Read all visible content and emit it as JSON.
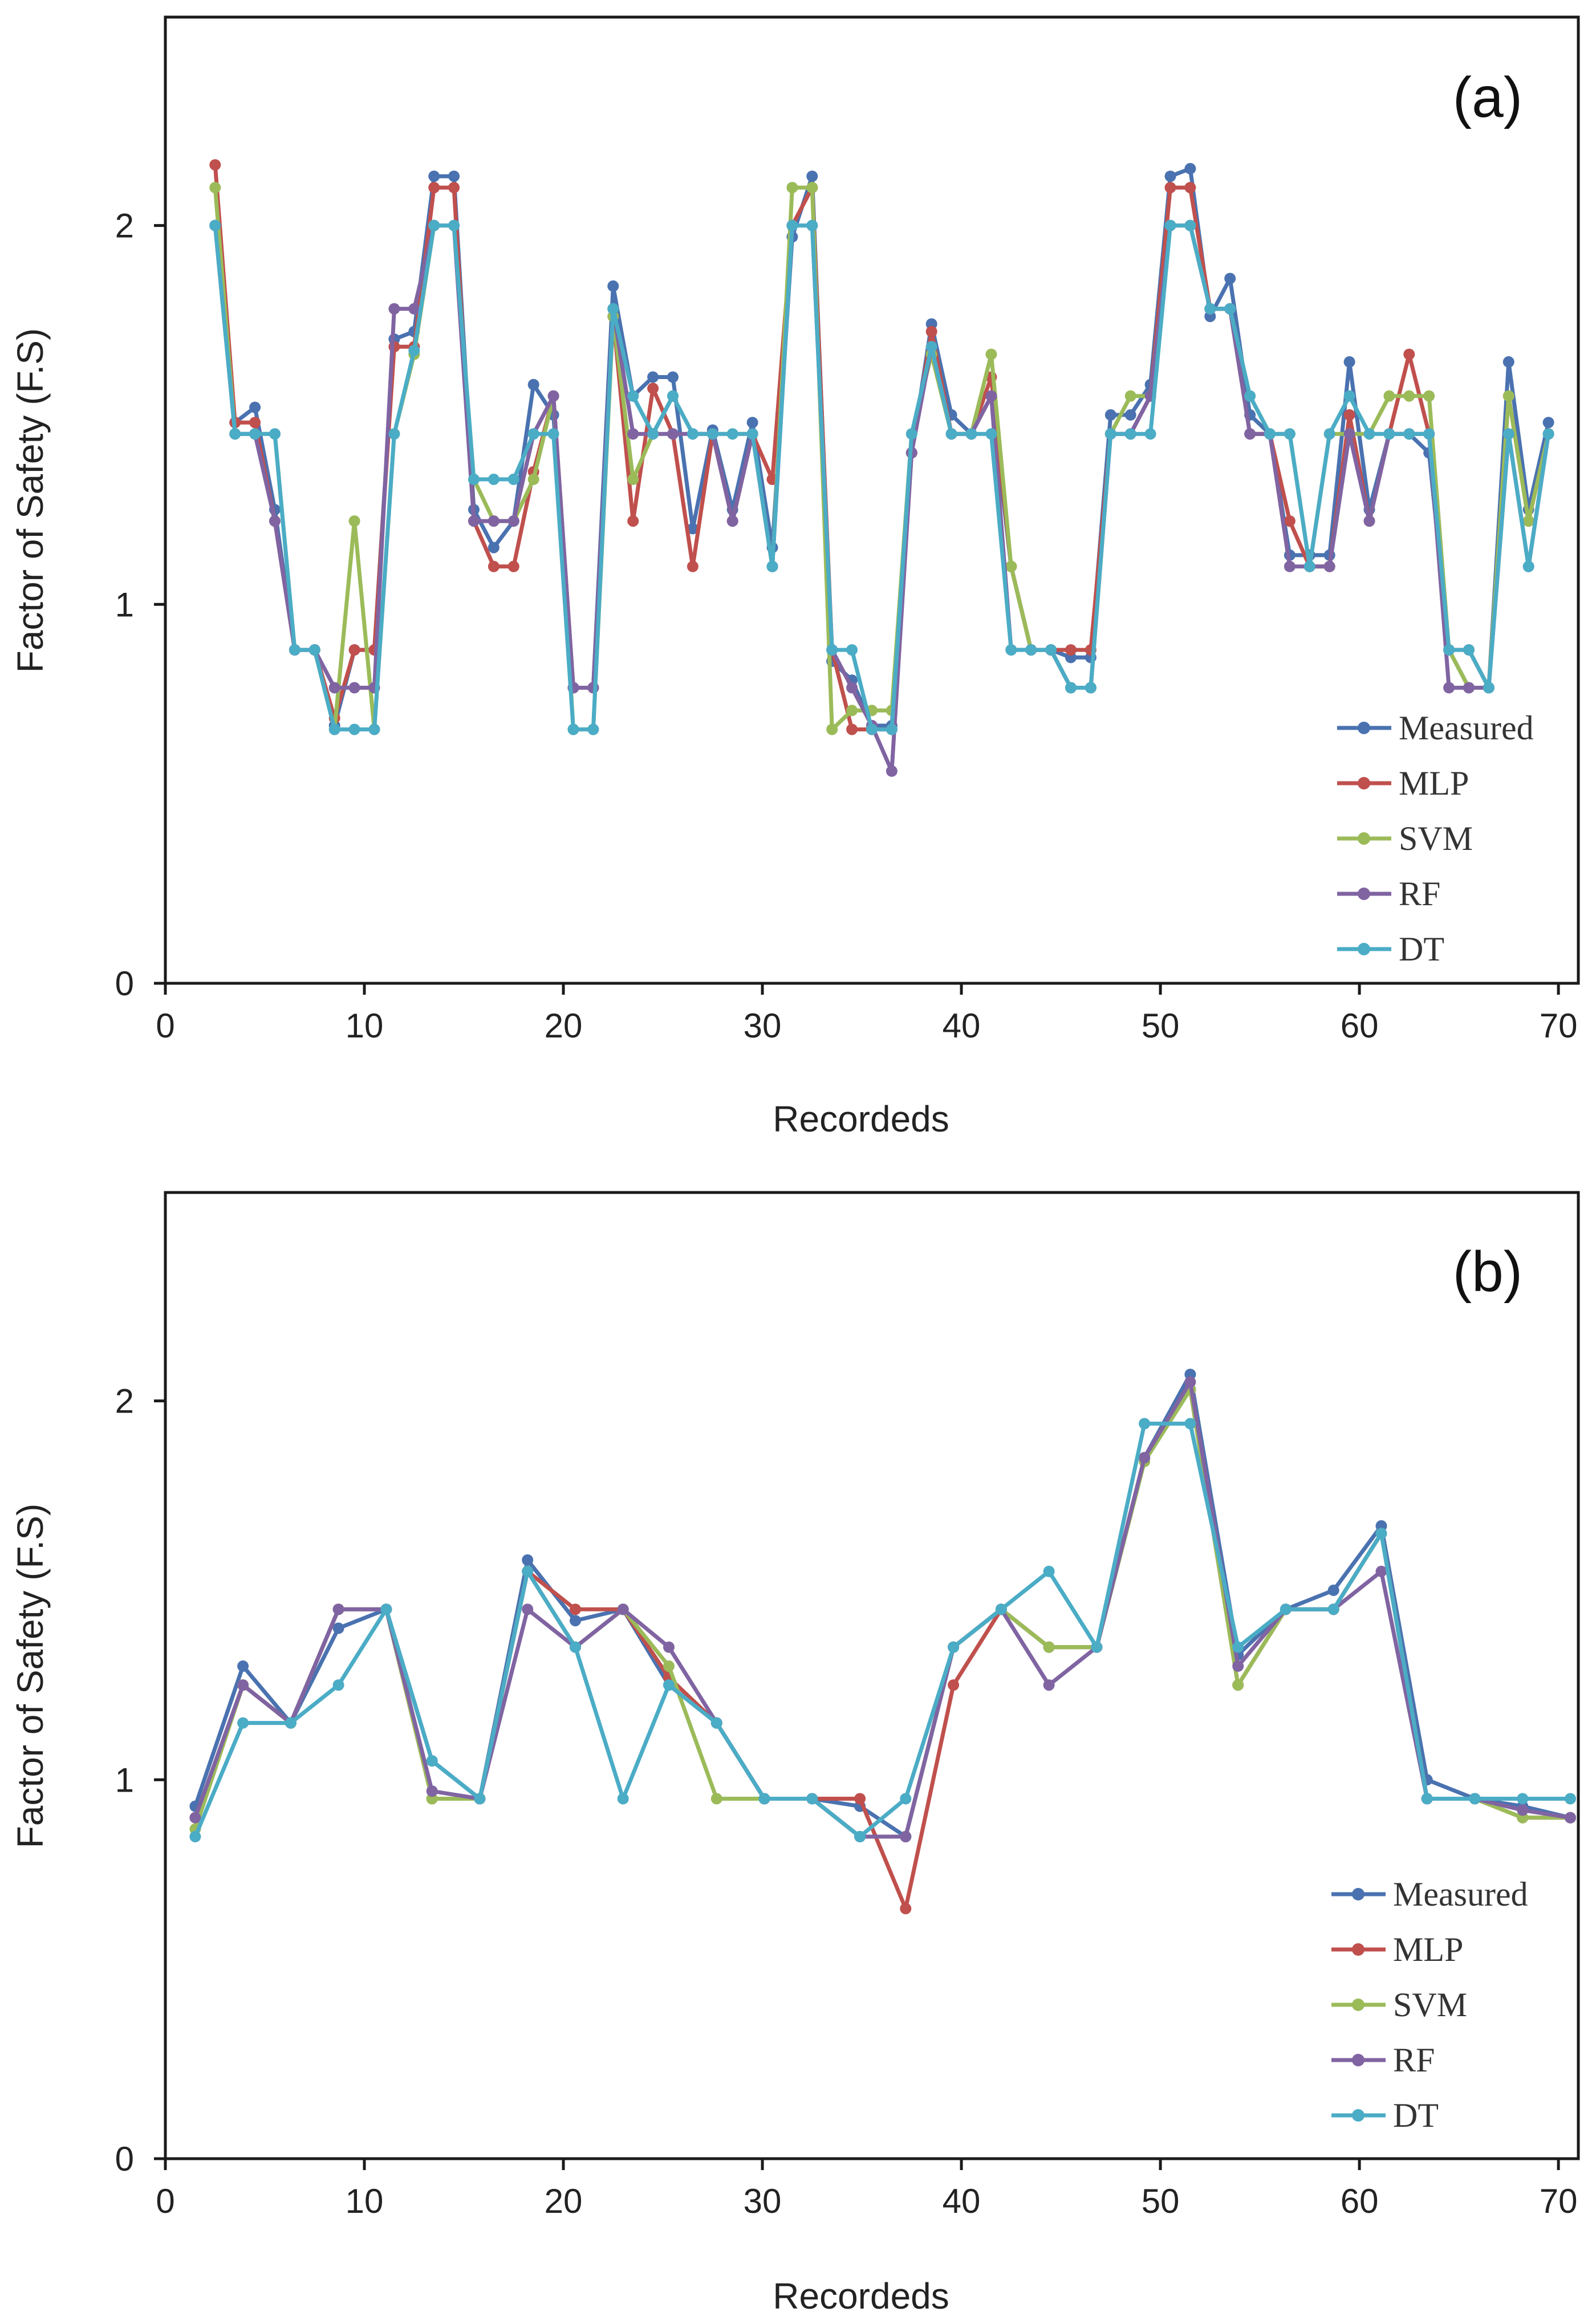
{
  "chart_data": [
    {
      "type": "line",
      "panel_label": "(a)",
      "xlabel": "Recordeds",
      "ylabel": "Factor of Safety (F.S)",
      "xlim": [
        0,
        71
      ],
      "ylim": [
        0,
        2.55
      ],
      "xticks": [
        0,
        10,
        20,
        30,
        40,
        50,
        60,
        70
      ],
      "yticks": [
        0,
        1,
        2
      ],
      "legend_position": "bottom-right",
      "x": [
        2.5,
        3.5,
        4.5,
        5.5,
        6.5,
        7.5,
        8.5,
        9.5,
        10.5,
        11.5,
        12.5,
        13.5,
        14.5,
        15.5,
        16.5,
        17.5,
        18.5,
        19.5,
        20.5,
        21.5,
        22.5,
        23.5,
        24.5,
        25.5,
        26.5,
        27.5,
        28.5,
        29.5,
        30.5,
        31.5,
        32.5,
        33.5,
        34.5,
        35.5,
        36.5,
        37.5,
        38.5,
        39.5,
        40.5,
        41.5,
        42.5,
        43.5,
        44.5,
        45.5,
        46.5,
        47.5,
        48.5,
        49.5,
        50.5,
        51.5,
        52.5,
        53.5,
        54.5,
        55.5,
        56.5,
        57.5,
        58.5,
        59.5,
        60.5,
        61.5,
        62.5,
        63.5,
        64.5,
        65.5,
        66.5,
        67.5,
        68.5,
        69.5
      ],
      "series": [
        {
          "name": "Measured",
          "color": "#4a72b0",
          "values": [
            2.0,
            1.48,
            1.52,
            1.25,
            0.88,
            0.88,
            0.68,
            0.88,
            0.88,
            1.7,
            1.72,
            2.13,
            2.13,
            1.25,
            1.15,
            1.22,
            1.58,
            1.5,
            0.78,
            0.78,
            1.84,
            1.55,
            1.6,
            1.6,
            1.2,
            1.46,
            1.25,
            1.48,
            1.15,
            1.97,
            2.13,
            0.85,
            0.8,
            0.68,
            0.68,
            1.4,
            1.74,
            1.5,
            1.45,
            1.55,
            1.1,
            0.88,
            0.88,
            0.86,
            0.86,
            1.5,
            1.5,
            1.58,
            2.13,
            2.15,
            1.76,
            1.86,
            1.5,
            1.45,
            1.13,
            1.13,
            1.13,
            1.64,
            1.25,
            1.45,
            1.45,
            1.4,
            0.88,
            0.78,
            0.78,
            1.64,
            1.25,
            1.48
          ]
        },
        {
          "name": "MLP",
          "color": "#c0504d",
          "values": [
            2.16,
            1.48,
            1.48,
            1.22,
            0.88,
            0.88,
            0.7,
            0.88,
            0.88,
            1.68,
            1.68,
            2.1,
            2.1,
            1.22,
            1.1,
            1.1,
            1.35,
            1.55,
            0.78,
            0.78,
            1.76,
            1.22,
            1.57,
            1.45,
            1.1,
            1.45,
            1.22,
            1.45,
            1.33,
            2.0,
            2.1,
            0.88,
            0.67,
            0.67,
            0.67,
            1.4,
            1.72,
            1.45,
            1.45,
            1.6,
            1.1,
            0.88,
            0.88,
            0.88,
            0.88,
            1.45,
            1.45,
            1.55,
            2.1,
            2.1,
            1.78,
            1.78,
            1.45,
            1.45,
            1.22,
            1.1,
            1.1,
            1.5,
            1.22,
            1.45,
            1.66,
            1.45,
            0.88,
            0.88,
            0.78,
            1.55,
            1.22,
            1.45
          ]
        },
        {
          "name": "SVM",
          "color": "#9bbb59",
          "values": [
            2.1,
            1.45,
            1.45,
            1.45,
            0.88,
            0.88,
            0.67,
            1.22,
            0.67,
            1.45,
            1.66,
            2.0,
            2.0,
            1.33,
            1.22,
            1.22,
            1.33,
            1.55,
            0.67,
            0.67,
            1.76,
            1.33,
            1.45,
            1.55,
            1.45,
            1.45,
            1.45,
            1.45,
            1.1,
            2.1,
            2.1,
            0.67,
            0.72,
            0.72,
            0.72,
            1.45,
            1.66,
            1.45,
            1.45,
            1.66,
            1.1,
            0.88,
            0.88,
            0.78,
            0.78,
            1.45,
            1.55,
            1.55,
            2.0,
            2.0,
            1.78,
            1.78,
            1.55,
            1.45,
            1.45,
            1.1,
            1.45,
            1.45,
            1.45,
            1.55,
            1.55,
            1.55,
            0.88,
            0.78,
            0.78,
            1.55,
            1.22,
            1.45
          ]
        },
        {
          "name": "RF",
          "color": "#8064a2",
          "values": [
            2.0,
            1.45,
            1.45,
            1.22,
            0.88,
            0.88,
            0.78,
            0.78,
            0.78,
            1.78,
            1.78,
            2.0,
            2.0,
            1.22,
            1.22,
            1.22,
            1.45,
            1.55,
            0.78,
            0.78,
            1.78,
            1.45,
            1.45,
            1.45,
            1.45,
            1.45,
            1.22,
            1.45,
            1.1,
            2.0,
            2.0,
            0.88,
            0.78,
            0.68,
            0.56,
            1.4,
            1.68,
            1.45,
            1.45,
            1.55,
            0.88,
            0.88,
            0.88,
            0.78,
            0.78,
            1.45,
            1.45,
            1.55,
            2.0,
            2.0,
            1.78,
            1.78,
            1.45,
            1.45,
            1.1,
            1.1,
            1.1,
            1.45,
            1.22,
            1.45,
            1.45,
            1.45,
            0.78,
            0.78,
            0.78,
            1.45,
            1.1,
            1.45
          ]
        },
        {
          "name": "DT",
          "color": "#4bacc6",
          "values": [
            2.0,
            1.45,
            1.45,
            1.45,
            0.88,
            0.88,
            0.67,
            0.67,
            0.67,
            1.45,
            1.67,
            2.0,
            2.0,
            1.33,
            1.33,
            1.33,
            1.45,
            1.45,
            0.67,
            0.67,
            1.78,
            1.55,
            1.45,
            1.55,
            1.45,
            1.45,
            1.45,
            1.45,
            1.1,
            2.0,
            2.0,
            0.88,
            0.88,
            0.67,
            0.67,
            1.45,
            1.68,
            1.45,
            1.45,
            1.45,
            0.88,
            0.88,
            0.88,
            0.78,
            0.78,
            1.45,
            1.45,
            1.45,
            2.0,
            2.0,
            1.78,
            1.78,
            1.55,
            1.45,
            1.45,
            1.1,
            1.45,
            1.55,
            1.45,
            1.45,
            1.45,
            1.45,
            0.88,
            0.88,
            0.78,
            1.45,
            1.1,
            1.45
          ]
        }
      ]
    },
    {
      "type": "line",
      "panel_label": "(b)",
      "xlabel": "Recordeds",
      "ylabel": "Factor of Safety (F.S)",
      "xlim": [
        0,
        71
      ],
      "ylim": [
        0,
        2.55
      ],
      "xticks": [
        0,
        10,
        20,
        30,
        40,
        50,
        60,
        70
      ],
      "yticks": [
        0,
        1,
        2
      ],
      "legend_position": "bottom-right",
      "x": [
        1.5,
        3.9,
        6.3,
        8.7,
        11.1,
        13.4,
        15.8,
        18.2,
        20.6,
        23.0,
        25.3,
        27.7,
        30.1,
        32.5,
        34.9,
        37.2,
        39.6,
        42.0,
        44.4,
        46.8,
        49.2,
        51.5,
        53.9,
        56.3,
        58.7,
        61.1,
        63.4,
        65.8,
        68.2,
        70.6
      ],
      "series": [
        {
          "name": "Measured",
          "color": "#4a72b0",
          "values": [
            0.93,
            1.3,
            1.15,
            1.4,
            1.45,
            1.05,
            0.95,
            1.58,
            1.42,
            1.45,
            1.25,
            1.15,
            0.95,
            0.95,
            0.93,
            0.85,
            1.35,
            1.45,
            1.35,
            1.35,
            1.85,
            2.07,
            1.33,
            1.45,
            1.5,
            1.67,
            1.0,
            0.95,
            0.93,
            0.9
          ]
        },
        {
          "name": "MLP",
          "color": "#c0504d",
          "values": [
            0.9,
            1.25,
            1.15,
            1.45,
            1.45,
            0.95,
            0.95,
            1.55,
            1.45,
            1.45,
            1.27,
            1.15,
            0.95,
            0.95,
            0.95,
            0.66,
            1.25,
            1.45,
            1.35,
            1.35,
            1.85,
            2.03,
            1.25,
            1.45,
            1.45,
            1.65,
            0.95,
            0.95,
            0.9,
            0.9
          ]
        },
        {
          "name": "SVM",
          "color": "#9bbb59",
          "values": [
            0.87,
            1.25,
            1.15,
            1.45,
            1.45,
            0.95,
            0.95,
            1.55,
            1.35,
            1.45,
            1.3,
            0.95,
            0.95,
            0.95,
            0.85,
            0.85,
            1.35,
            1.45,
            1.35,
            1.35,
            1.84,
            2.03,
            1.25,
            1.45,
            1.45,
            1.65,
            0.95,
            0.95,
            0.9,
            0.9
          ]
        },
        {
          "name": "RF",
          "color": "#8064a2",
          "values": [
            0.9,
            1.25,
            1.15,
            1.45,
            1.45,
            0.97,
            0.95,
            1.45,
            1.35,
            1.45,
            1.35,
            1.15,
            0.95,
            0.95,
            0.85,
            0.85,
            1.35,
            1.45,
            1.25,
            1.35,
            1.85,
            2.05,
            1.3,
            1.45,
            1.45,
            1.55,
            0.95,
            0.95,
            0.92,
            0.9
          ]
        },
        {
          "name": "DT",
          "color": "#4bacc6",
          "values": [
            0.85,
            1.15,
            1.15,
            1.25,
            1.45,
            1.05,
            0.95,
            1.55,
            1.35,
            0.95,
            1.25,
            1.15,
            0.95,
            0.95,
            0.85,
            0.95,
            1.35,
            1.45,
            1.55,
            1.35,
            1.94,
            1.94,
            1.35,
            1.45,
            1.45,
            1.65,
            0.95,
            0.95,
            0.95,
            0.95
          ]
        }
      ]
    }
  ]
}
